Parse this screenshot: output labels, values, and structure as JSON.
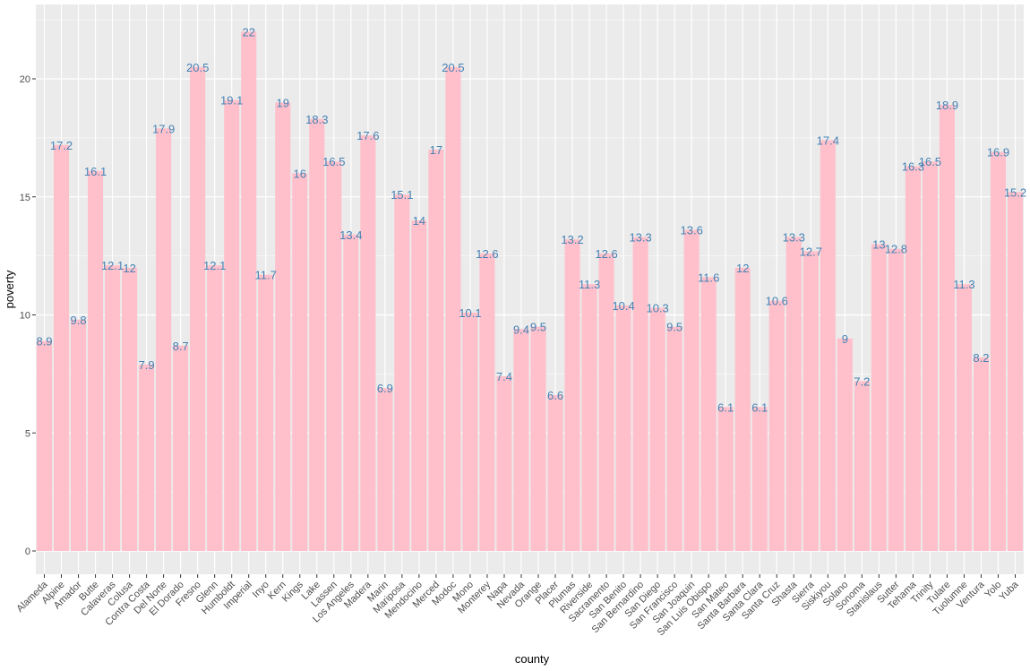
{
  "chart_data": {
    "type": "bar",
    "xlabel": "county",
    "ylabel": "poverty",
    "ylim": [
      0,
      22.8
    ],
    "yticks": [
      0,
      5,
      10,
      15,
      20
    ],
    "grid": true,
    "bar_color": "#ffc0cb",
    "label_color": "#4682b4",
    "panel_color": "#ebebeb",
    "categories": [
      "Alameda",
      "Alpine",
      "Amador",
      "Butte",
      "Calaveras",
      "Colusa",
      "Contra Costa",
      "Del Norte",
      "El Dorado",
      "Fresno",
      "Glenn",
      "Humboldt",
      "Imperial",
      "Inyo",
      "Kern",
      "Kings",
      "Lake",
      "Lassen",
      "Los Angeles",
      "Madera",
      "Marin",
      "Mariposa",
      "Mendocino",
      "Merced",
      "Modoc",
      "Mono",
      "Monterey",
      "Napa",
      "Nevada",
      "Orange",
      "Placer",
      "Plumas",
      "Riverside",
      "Sacramento",
      "San Benito",
      "San Bernardino",
      "San Diego",
      "San Francisco",
      "San Joaquin",
      "San Luis Obispo",
      "San Mateo",
      "Santa Barbara",
      "Santa Clara",
      "Santa Cruz",
      "Shasta",
      "Sierra",
      "Siskiyou",
      "Solano",
      "Sonoma",
      "Stanislaus",
      "Sutter",
      "Tehama",
      "Trinity",
      "Tulare",
      "Tuolumne",
      "Ventura",
      "Yolo",
      "Yuba"
    ],
    "values": [
      8.9,
      17.2,
      9.8,
      16.1,
      12.1,
      12,
      7.9,
      17.9,
      8.7,
      20.5,
      12.1,
      19.1,
      22,
      11.7,
      19,
      16,
      18.3,
      16.5,
      13.4,
      17.6,
      6.9,
      15.1,
      14,
      17,
      20.5,
      10.1,
      12.6,
      7.4,
      9.4,
      9.5,
      6.6,
      13.2,
      11.3,
      12.6,
      10.4,
      13.3,
      10.3,
      9.5,
      13.6,
      11.6,
      6.1,
      12,
      6.1,
      10.6,
      13.3,
      12.7,
      17.4,
      9,
      7.2,
      13,
      12.8,
      16.3,
      16.5,
      18.9,
      11.3,
      8.2,
      16.9,
      15.2
    ]
  }
}
